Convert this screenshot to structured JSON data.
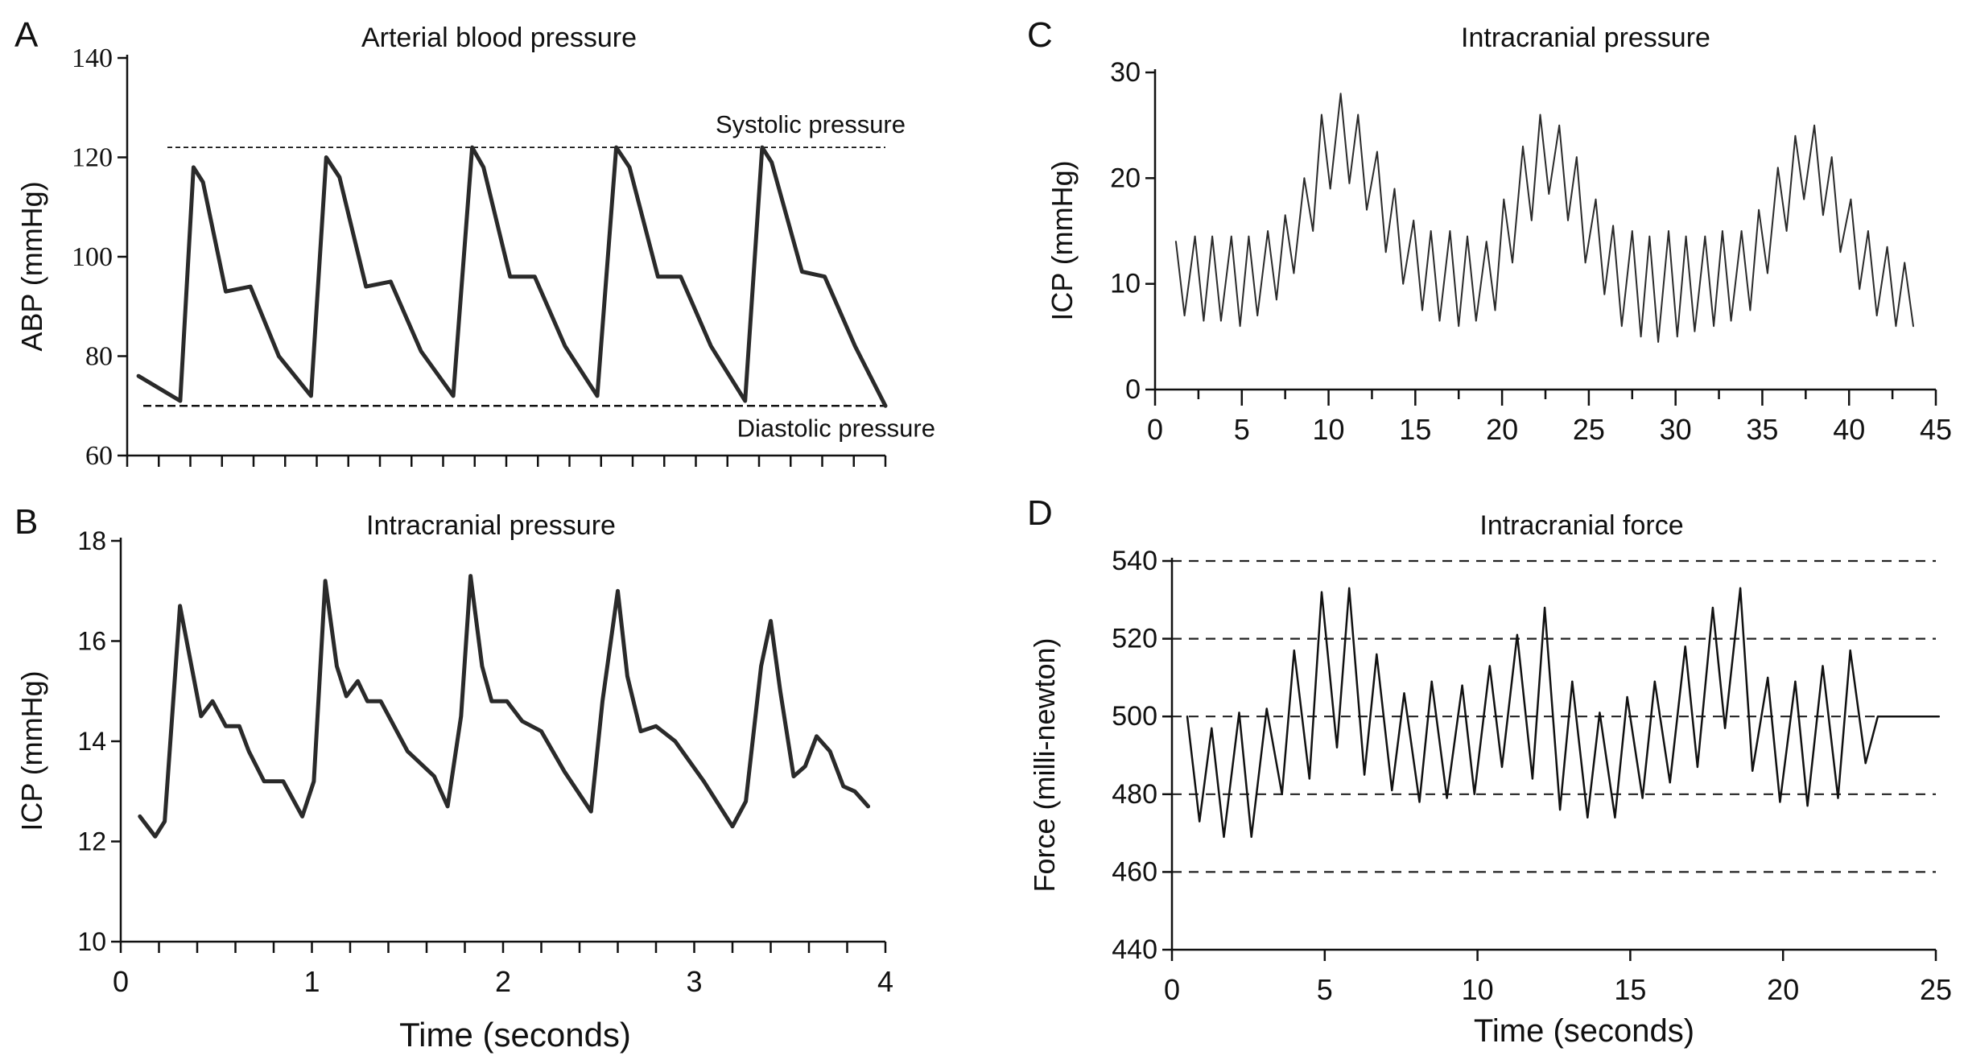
{
  "chart_data": [
    {
      "id": "A",
      "panel_letter": "A",
      "type": "line",
      "title": "Arterial blood pressure",
      "xlabel": "",
      "ylabel": "ABP (mmHg)",
      "xlim": [
        0,
        4
      ],
      "ylim": [
        60,
        140
      ],
      "x_ticks": [],
      "y_ticks": [
        "60",
        "80",
        "100",
        "120",
        "140"
      ],
      "grid": false,
      "reference_lines": [
        {
          "y": 122,
          "label": "Systolic pressure"
        },
        {
          "y": 70,
          "label": "Diastolic pressure"
        }
      ],
      "series": [
        {
          "x": [
            0.06,
            0.28,
            0.35,
            0.4,
            0.52,
            0.65,
            0.8,
            0.97,
            1.05,
            1.12,
            1.26,
            1.39,
            1.55,
            1.72,
            1.82,
            1.88,
            2.02,
            2.15,
            2.31,
            2.48,
            2.58,
            2.65,
            2.8,
            2.92,
            3.08,
            3.26,
            3.35,
            3.4,
            3.56,
            3.68,
            3.84,
            4.0
          ],
          "y": [
            76,
            71,
            118,
            115,
            93,
            94,
            80,
            72,
            120,
            116,
            94,
            95,
            81,
            72,
            122,
            118,
            96,
            96,
            82,
            72,
            122,
            118,
            96,
            96,
            82,
            71,
            122,
            119,
            97,
            96,
            82,
            70
          ]
        }
      ]
    },
    {
      "id": "B",
      "panel_letter": "B",
      "type": "line",
      "title": "Intracranial pressure",
      "xlabel": "Time (seconds)",
      "ylabel": "ICP (mmHg)",
      "xlim": [
        0,
        4
      ],
      "ylim": [
        10,
        18
      ],
      "x_ticks": [
        "0",
        "1",
        "2",
        "3",
        "4"
      ],
      "y_ticks": [
        "10",
        "12",
        "14",
        "16",
        "18"
      ],
      "grid": false,
      "series": [
        {
          "x": [
            0.1,
            0.18,
            0.23,
            0.31,
            0.37,
            0.42,
            0.48,
            0.55,
            0.62,
            0.67,
            0.75,
            0.85,
            0.95,
            1.01,
            1.07,
            1.13,
            1.18,
            1.24,
            1.29,
            1.36,
            1.5,
            1.64,
            1.71,
            1.78,
            1.83,
            1.89,
            1.94,
            2.02,
            2.1,
            2.2,
            2.32,
            2.46,
            2.52,
            2.6,
            2.65,
            2.72,
            2.8,
            2.9,
            3.05,
            3.2,
            3.27,
            3.35,
            3.4,
            3.45,
            3.52,
            3.58,
            3.64,
            3.71,
            3.78,
            3.84,
            3.91
          ],
          "y": [
            12.5,
            12.1,
            12.4,
            16.7,
            15.5,
            14.5,
            14.8,
            14.3,
            14.3,
            13.8,
            13.2,
            13.2,
            12.5,
            13.2,
            17.2,
            15.5,
            14.9,
            15.2,
            14.8,
            14.8,
            13.8,
            13.3,
            12.7,
            14.5,
            17.3,
            15.5,
            14.8,
            14.8,
            14.4,
            14.2,
            13.4,
            12.6,
            14.8,
            17.0,
            15.3,
            14.2,
            14.3,
            14.0,
            13.2,
            12.3,
            12.8,
            15.5,
            16.4,
            15.0,
            13.3,
            13.5,
            14.1,
            13.8,
            13.1,
            13.0,
            12.7
          ]
        }
      ]
    },
    {
      "id": "C",
      "panel_letter": "C",
      "type": "line",
      "title": "Intracranial pressure",
      "xlabel": "",
      "ylabel": "ICP (mmHg)",
      "xlim": [
        0,
        45
      ],
      "ylim": [
        0,
        30
      ],
      "x_ticks": [
        "0",
        "5",
        "10",
        "15",
        "20",
        "25",
        "30",
        "35",
        "40",
        "45"
      ],
      "y_ticks": [
        "0",
        "10",
        "20",
        "30"
      ],
      "grid": false,
      "series": [
        {
          "x": [
            1.2,
            1.7,
            2.3,
            2.8,
            3.3,
            3.8,
            4.4,
            4.9,
            5.4,
            5.9,
            6.5,
            7.0,
            7.5,
            8.0,
            8.6,
            9.1,
            9.6,
            10.1,
            10.7,
            11.2,
            11.7,
            12.2,
            12.8,
            13.3,
            13.8,
            14.3,
            14.9,
            15.4,
            15.9,
            16.4,
            17.0,
            17.5,
            18.0,
            18.5,
            19.1,
            19.6,
            20.1,
            20.6,
            21.2,
            21.7,
            22.2,
            22.7,
            23.3,
            23.8,
            24.3,
            24.8,
            25.4,
            25.9,
            26.4,
            26.9,
            27.5,
            28.0,
            28.5,
            29.0,
            29.6,
            30.1,
            30.6,
            31.1,
            31.7,
            32.2,
            32.7,
            33.2,
            33.8,
            34.3,
            34.8,
            35.3,
            35.9,
            36.4,
            36.9,
            37.4,
            38.0,
            38.5,
            39.0,
            39.5,
            40.1,
            40.6,
            41.1,
            41.6,
            42.2,
            42.7,
            43.2,
            43.7
          ],
          "y": [
            14,
            7,
            14.5,
            6.5,
            14.5,
            6.5,
            14.5,
            6,
            14.5,
            7,
            15,
            8.5,
            16.5,
            11,
            20,
            15,
            26,
            19,
            28,
            19.5,
            26,
            17,
            22.5,
            13,
            19,
            10,
            16,
            7.5,
            15,
            6.5,
            15,
            6,
            14.5,
            6.5,
            14,
            7.5,
            18,
            12,
            23,
            16,
            26,
            18.5,
            25,
            16,
            22,
            12,
            18,
            9,
            15.5,
            6,
            15,
            5,
            14.5,
            4.5,
            15,
            5,
            14.5,
            5.5,
            14.5,
            6,
            15,
            6.5,
            15,
            7.5,
            17,
            11,
            21,
            15,
            24,
            18,
            25,
            16.5,
            22,
            13,
            18,
            9.5,
            15,
            7,
            13.5,
            6,
            12,
            6
          ]
        }
      ]
    },
    {
      "id": "D",
      "panel_letter": "D",
      "type": "line",
      "title": "Intracranial force",
      "xlabel": "Time (seconds)",
      "ylabel": "Force (milli-newton)",
      "xlim": [
        0,
        25
      ],
      "ylim": [
        440,
        540
      ],
      "x_ticks": [
        "0",
        "5",
        "10",
        "15",
        "20",
        "25"
      ],
      "y_ticks": [
        "440",
        "460",
        "480",
        "500",
        "520",
        "540"
      ],
      "grid": true,
      "series": [
        {
          "x": [
            0.5,
            0.9,
            1.3,
            1.7,
            2.2,
            2.6,
            3.1,
            3.6,
            4.0,
            4.5,
            4.9,
            5.4,
            5.8,
            6.3,
            6.7,
            7.2,
            7.6,
            8.1,
            8.5,
            9.0,
            9.5,
            9.9,
            10.4,
            10.8,
            11.3,
            11.8,
            12.2,
            12.7,
            13.1,
            13.6,
            14.0,
            14.5,
            14.9,
            15.4,
            15.8,
            16.3,
            16.8,
            17.2,
            17.7,
            18.1,
            18.6,
            19.0,
            19.5,
            19.9,
            20.4,
            20.8,
            21.3,
            21.8,
            22.2,
            22.7,
            23.1,
            23.6,
            24.0,
            24.5,
            24.9,
            25.1
          ],
          "y": [
            500,
            473,
            497,
            469,
            501,
            469,
            502,
            480,
            517,
            484,
            532,
            492,
            533,
            485,
            516,
            481,
            506,
            478,
            509,
            479,
            508,
            480,
            513,
            487,
            521,
            484,
            528,
            476,
            509,
            474,
            501,
            474,
            505,
            479,
            509,
            483,
            518,
            487,
            528,
            497,
            533,
            486,
            510,
            478,
            509,
            477,
            513,
            479,
            517,
            488,
            500,
            500,
            500,
            500,
            500,
            500
          ]
        }
      ]
    }
  ],
  "figure_text": {
    "systolic_label": "Systolic pressure",
    "diastolic_label": "Diastolic pressure"
  }
}
